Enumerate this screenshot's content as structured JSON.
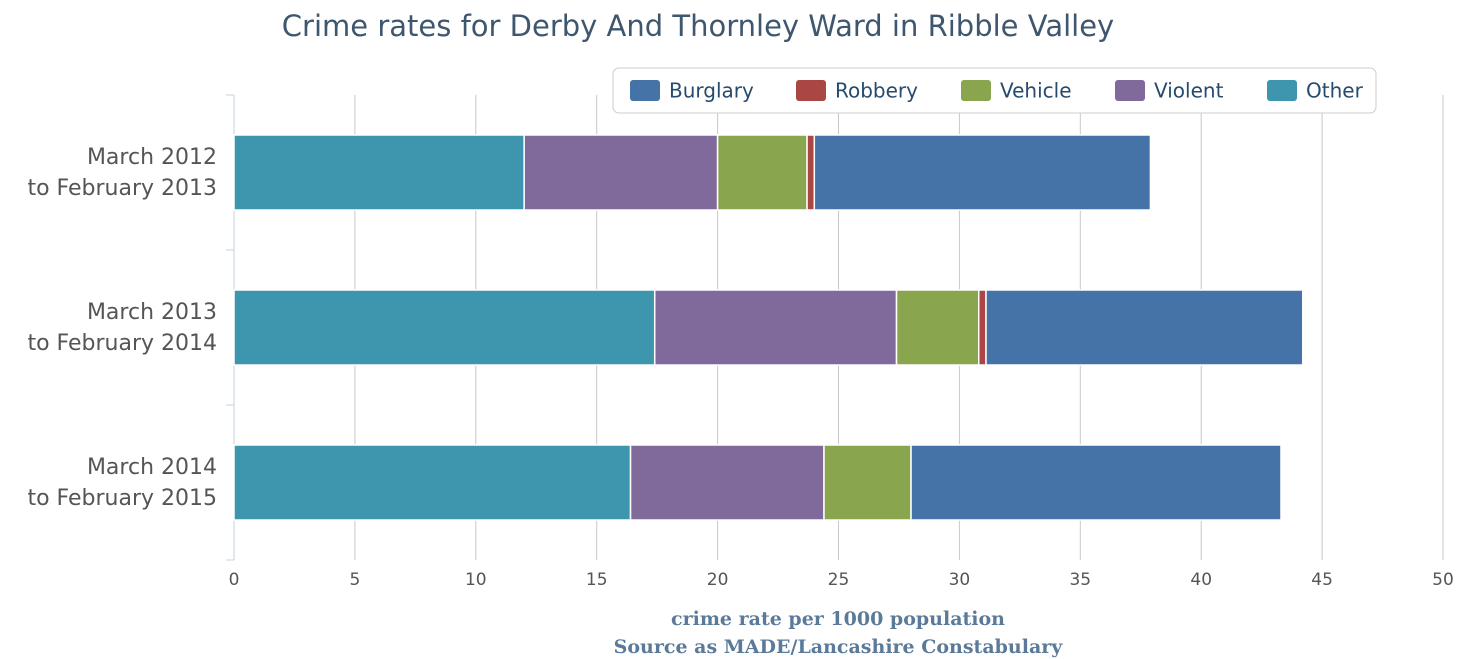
{
  "chart_data": {
    "type": "stacked-bar-horizontal",
    "title": "Crime rates for Derby And Thornley Ward in Ribble Valley",
    "x_label": "crime rate per 1000 population",
    "source": "Source as MADE/Lancashire Constabulary",
    "categories": [
      "March 2012\nto February 2013",
      "March 2013\nto February 2014",
      "March 2014\nto February 2015"
    ],
    "series": [
      {
        "name": "Burglary",
        "color": "#4572a7",
        "values": [
          13.9,
          13.1,
          15.3
        ]
      },
      {
        "name": "Robbery",
        "color": "#aa4643",
        "values": [
          0.3,
          0.3,
          0
        ]
      },
      {
        "name": "Vehicle",
        "color": "#89a54e",
        "values": [
          3.7,
          3.4,
          3.6
        ]
      },
      {
        "name": "Violent",
        "color": "#80699b",
        "values": [
          8.0,
          10.0,
          8.0
        ]
      },
      {
        "name": "Other",
        "color": "#3d96ae",
        "values": [
          12.0,
          17.4,
          16.4
        ]
      }
    ],
    "xlim": [
      0,
      50
    ],
    "xticks": [
      0,
      5,
      10,
      15,
      20,
      25,
      30,
      35,
      40,
      45,
      50
    ],
    "grid": true,
    "legend": "top"
  }
}
